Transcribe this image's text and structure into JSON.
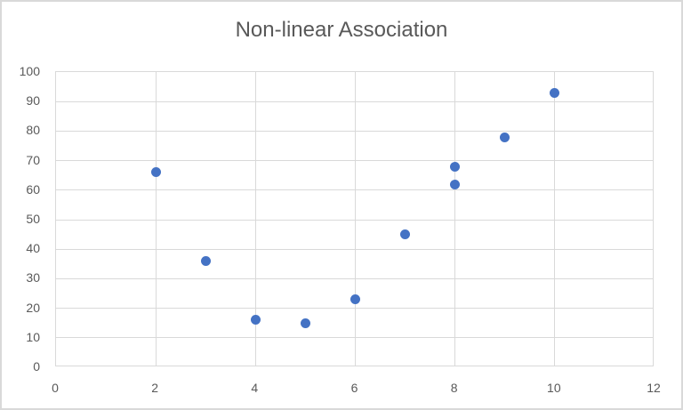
{
  "chart_data": {
    "type": "scatter",
    "title": "Non-linear Association",
    "x": [
      2,
      3,
      4,
      5,
      6,
      7,
      8,
      8,
      9,
      10
    ],
    "y": [
      66,
      36,
      16,
      15,
      23,
      45,
      68,
      62,
      78,
      93
    ],
    "xlabel": "",
    "ylabel": "",
    "xlim": [
      0,
      12
    ],
    "ylim": [
      0,
      100
    ],
    "xticks": [
      0,
      2,
      4,
      6,
      8,
      10,
      12
    ],
    "yticks": [
      0,
      10,
      20,
      30,
      40,
      50,
      60,
      70,
      80,
      90,
      100
    ],
    "grid": true,
    "legend": "none",
    "colors": {
      "marker": "#4472c4",
      "gridline": "#d9d9d9",
      "axis_text": "#595959",
      "title_text": "#595959",
      "frame_border": "#d9d9d9",
      "background": "#ffffff"
    }
  }
}
